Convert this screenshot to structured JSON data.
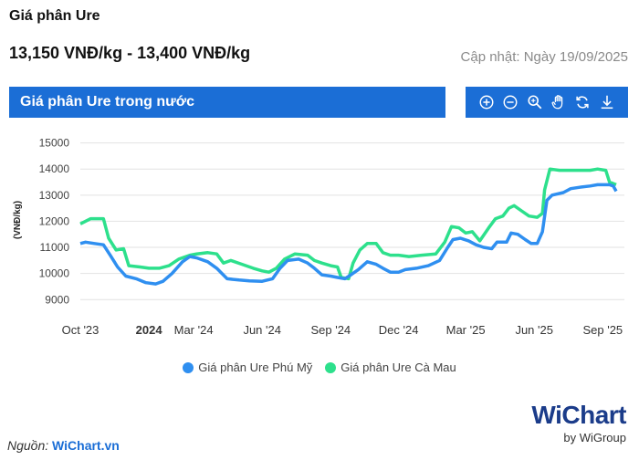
{
  "header": {
    "title": "Giá phân Ure",
    "price_range": "13,150 VNĐ/kg - 13,400 VNĐ/kg",
    "updated": "Cập nhật: Ngày 19/09/2025"
  },
  "panel": {
    "title": "Giá phân Ure trong nước"
  },
  "toolbar": {
    "icons": [
      "zoom-in-icon",
      "zoom-out-icon",
      "magnify-icon",
      "pan-hand-icon",
      "reset-icon",
      "download-icon"
    ]
  },
  "colors": {
    "accent": "#1b6ed6",
    "series1": "#2f8ff0",
    "series2": "#2de08c"
  },
  "chart_data": {
    "type": "line",
    "ylabel": "(VNĐ/kg)",
    "ylim": [
      8800,
      15300
    ],
    "yticks": [
      9000,
      10000,
      11000,
      12000,
      13000,
      14000,
      15000
    ],
    "xlim": [
      "2023-10-01",
      "2025-09-30"
    ],
    "xticks": [
      {
        "date": "2023-10-01",
        "label": "Oct '23",
        "bold": false
      },
      {
        "date": "2024-01-01",
        "label": "2024",
        "bold": true
      },
      {
        "date": "2024-03-01",
        "label": "Mar '24",
        "bold": false
      },
      {
        "date": "2024-06-01",
        "label": "Jun '24",
        "bold": false
      },
      {
        "date": "2024-09-01",
        "label": "Sep '24",
        "bold": false
      },
      {
        "date": "2024-12-01",
        "label": "Dec '24",
        "bold": false
      },
      {
        "date": "2025-03-01",
        "label": "Mar '25",
        "bold": false
      },
      {
        "date": "2025-06-01",
        "label": "Jun '25",
        "bold": false
      },
      {
        "date": "2025-09-01",
        "label": "Sep '25",
        "bold": false
      }
    ],
    "grid": true,
    "legend": "bottom",
    "series": [
      {
        "name": "Giá phân Ure Phú Mỹ",
        "points": [
          [
            "2023-10-01",
            11150
          ],
          [
            "2023-10-08",
            11200
          ],
          [
            "2023-10-20",
            11150
          ],
          [
            "2023-11-01",
            11100
          ],
          [
            "2023-11-10",
            10700
          ],
          [
            "2023-11-20",
            10250
          ],
          [
            "2023-12-01",
            9900
          ],
          [
            "2023-12-15",
            9800
          ],
          [
            "2023-12-28",
            9650
          ],
          [
            "2024-01-10",
            9600
          ],
          [
            "2024-01-20",
            9700
          ],
          [
            "2024-02-01",
            10000
          ],
          [
            "2024-02-15",
            10450
          ],
          [
            "2024-02-25",
            10650
          ],
          [
            "2024-03-05",
            10600
          ],
          [
            "2024-03-20",
            10450
          ],
          [
            "2024-04-01",
            10200
          ],
          [
            "2024-04-15",
            9800
          ],
          [
            "2024-05-01",
            9750
          ],
          [
            "2024-05-15",
            9720
          ],
          [
            "2024-06-01",
            9700
          ],
          [
            "2024-06-15",
            9800
          ],
          [
            "2024-06-25",
            10200
          ],
          [
            "2024-07-05",
            10500
          ],
          [
            "2024-07-20",
            10550
          ],
          [
            "2024-08-01",
            10400
          ],
          [
            "2024-08-10",
            10200
          ],
          [
            "2024-08-20",
            9950
          ],
          [
            "2024-09-01",
            9900
          ],
          [
            "2024-09-10",
            9850
          ],
          [
            "2024-09-20",
            9800
          ],
          [
            "2024-09-28",
            9950
          ],
          [
            "2024-10-08",
            10150
          ],
          [
            "2024-10-20",
            10450
          ],
          [
            "2024-11-01",
            10350
          ],
          [
            "2024-11-10",
            10200
          ],
          [
            "2024-11-20",
            10050
          ],
          [
            "2024-12-01",
            10050
          ],
          [
            "2024-12-10",
            10150
          ],
          [
            "2024-12-25",
            10200
          ],
          [
            "2025-01-10",
            10300
          ],
          [
            "2025-01-25",
            10500
          ],
          [
            "2025-02-05",
            11000
          ],
          [
            "2025-02-12",
            11300
          ],
          [
            "2025-02-22",
            11350
          ],
          [
            "2025-03-05",
            11250
          ],
          [
            "2025-03-15",
            11100
          ],
          [
            "2025-03-25",
            11000
          ],
          [
            "2025-04-05",
            10950
          ],
          [
            "2025-04-12",
            11200
          ],
          [
            "2025-04-25",
            11200
          ],
          [
            "2025-05-01",
            11550
          ],
          [
            "2025-05-10",
            11500
          ],
          [
            "2025-05-20",
            11300
          ],
          [
            "2025-05-28",
            11150
          ],
          [
            "2025-06-05",
            11150
          ],
          [
            "2025-06-12",
            11600
          ],
          [
            "2025-06-18",
            12800
          ],
          [
            "2025-06-25",
            13000
          ],
          [
            "2025-07-10",
            13100
          ],
          [
            "2025-07-20",
            13250
          ],
          [
            "2025-08-01",
            13300
          ],
          [
            "2025-08-15",
            13350
          ],
          [
            "2025-08-25",
            13400
          ],
          [
            "2025-09-01",
            13400
          ],
          [
            "2025-09-10",
            13400
          ],
          [
            "2025-09-15",
            13350
          ],
          [
            "2025-09-19",
            13150
          ]
        ]
      },
      {
        "name": "Giá phân Ure Cà Mau",
        "points": [
          [
            "2023-10-01",
            11900
          ],
          [
            "2023-10-08",
            12000
          ],
          [
            "2023-10-15",
            12100
          ],
          [
            "2023-11-01",
            12100
          ],
          [
            "2023-11-08",
            11350
          ],
          [
            "2023-11-18",
            10900
          ],
          [
            "2023-11-28",
            10950
          ],
          [
            "2023-12-05",
            10300
          ],
          [
            "2023-12-20",
            10250
          ],
          [
            "2024-01-01",
            10200
          ],
          [
            "2024-01-15",
            10200
          ],
          [
            "2024-01-28",
            10300
          ],
          [
            "2024-02-10",
            10550
          ],
          [
            "2024-02-25",
            10700
          ],
          [
            "2024-03-05",
            10750
          ],
          [
            "2024-03-20",
            10800
          ],
          [
            "2024-04-01",
            10750
          ],
          [
            "2024-04-10",
            10400
          ],
          [
            "2024-04-20",
            10500
          ],
          [
            "2024-05-05",
            10350
          ],
          [
            "2024-05-20",
            10200
          ],
          [
            "2024-06-01",
            10100
          ],
          [
            "2024-06-10",
            10050
          ],
          [
            "2024-06-20",
            10200
          ],
          [
            "2024-07-01",
            10550
          ],
          [
            "2024-07-15",
            10750
          ],
          [
            "2024-08-01",
            10700
          ],
          [
            "2024-08-10",
            10500
          ],
          [
            "2024-08-20",
            10400
          ],
          [
            "2024-09-01",
            10300
          ],
          [
            "2024-09-10",
            10250
          ],
          [
            "2024-09-15",
            9850
          ],
          [
            "2024-09-25",
            9800
          ],
          [
            "2024-10-01",
            10400
          ],
          [
            "2024-10-10",
            10900
          ],
          [
            "2024-10-20",
            11150
          ],
          [
            "2024-11-01",
            11150
          ],
          [
            "2024-11-10",
            10800
          ],
          [
            "2024-11-20",
            10700
          ],
          [
            "2024-12-01",
            10700
          ],
          [
            "2024-12-15",
            10650
          ],
          [
            "2025-01-01",
            10700
          ],
          [
            "2025-01-20",
            10750
          ],
          [
            "2025-02-01",
            11200
          ],
          [
            "2025-02-10",
            11800
          ],
          [
            "2025-02-20",
            11750
          ],
          [
            "2025-03-01",
            11550
          ],
          [
            "2025-03-10",
            11600
          ],
          [
            "2025-03-20",
            11250
          ],
          [
            "2025-04-01",
            11750
          ],
          [
            "2025-04-10",
            12100
          ],
          [
            "2025-04-20",
            12200
          ],
          [
            "2025-04-28",
            12500
          ],
          [
            "2025-05-05",
            12600
          ],
          [
            "2025-05-15",
            12400
          ],
          [
            "2025-05-25",
            12200
          ],
          [
            "2025-06-05",
            12150
          ],
          [
            "2025-06-12",
            12300
          ],
          [
            "2025-06-15",
            13200
          ],
          [
            "2025-06-22",
            14000
          ],
          [
            "2025-07-05",
            13950
          ],
          [
            "2025-07-20",
            13950
          ],
          [
            "2025-08-01",
            13950
          ],
          [
            "2025-08-15",
            13950
          ],
          [
            "2025-08-25",
            14000
          ],
          [
            "2025-09-05",
            13950
          ],
          [
            "2025-09-10",
            13500
          ],
          [
            "2025-09-19",
            13400
          ]
        ]
      }
    ]
  },
  "legend_items": [
    "Giá phân Ure Phú Mỹ",
    "Giá phân Ure Cà Mau"
  ],
  "source": {
    "label": "Nguồn:",
    "site": "WiChart.vn"
  },
  "logo": {
    "name": "WiChart",
    "byline": "by WiGroup"
  }
}
